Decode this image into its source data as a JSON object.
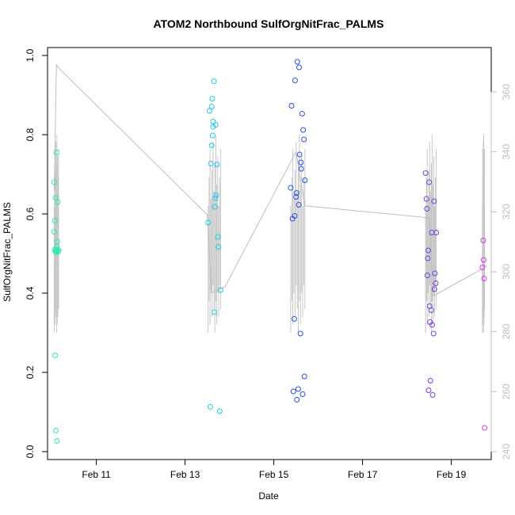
{
  "chart_data": {
    "type": "scatter",
    "title": "ATOM2 Northbound SulfOrgNitFrac_PALMS",
    "xlabel": "Date",
    "ylabel": "SulfOrgNitFrac_PALMS",
    "x_axis": {
      "unit": "date (February 2017)",
      "range": [
        9.9,
        19.9
      ],
      "ticks": [
        11,
        13,
        15,
        17,
        19
      ],
      "tick_labels": [
        "Feb 11",
        "Feb 13",
        "Feb 15",
        "Feb 17",
        "Feb 19"
      ]
    },
    "y_axis": {
      "range": [
        0,
        1.0
      ],
      "ticks": [
        0.0,
        0.2,
        0.4,
        0.6,
        0.8,
        1.0
      ],
      "tick_labels": [
        "0.0",
        "0.2",
        "0.4",
        "0.6",
        "0.8",
        "1.0"
      ]
    },
    "y2_axis": {
      "range": [
        240,
        370
      ],
      "ticks": [
        240,
        260,
        280,
        300,
        320,
        340,
        360
      ],
      "tick_labels": [
        "240",
        "260",
        "280",
        "300",
        "320",
        "340",
        "360"
      ],
      "color": "#bdbdbd"
    },
    "grid": false,
    "legend": "none",
    "series": [
      {
        "color": "#2ee8b0",
        "x": [
          10.05,
          10.05,
          10.06,
          10.07,
          10.07,
          10.08,
          10.08,
          10.09,
          10.09,
          10.1,
          10.1,
          10.11,
          10.11,
          10.12,
          10.12,
          10.13,
          10.14,
          10.15
        ],
        "y": [
          0.68,
          0.555,
          0.51,
          0.583,
          0.243,
          0.641,
          0.505,
          0.053,
          0.509,
          0.755,
          0.503,
          0.518,
          0.027,
          0.53,
          0.51,
          0.63,
          0.505,
          0.508
        ]
      },
      {
        "color": "#20c8f0",
        "x": [
          13.52,
          13.55,
          13.57,
          13.58,
          13.6,
          13.6,
          13.61,
          13.62,
          13.63,
          13.63,
          13.65,
          13.66,
          13.67,
          13.68,
          13.69,
          13.7,
          13.72,
          13.74,
          13.75,
          13.78,
          13.8
        ],
        "y": [
          0.578,
          0.86,
          0.113,
          0.727,
          0.871,
          0.773,
          0.891,
          0.798,
          0.833,
          0.82,
          0.935,
          0.352,
          0.618,
          0.64,
          0.825,
          0.647,
          0.725,
          0.542,
          0.517,
          0.102,
          0.408
        ]
      },
      {
        "color": "#2a4fe8",
        "x": [
          15.38,
          15.4,
          15.42,
          15.44,
          15.46,
          15.47,
          15.48,
          15.5,
          15.51,
          15.52,
          15.53,
          15.55,
          15.56,
          15.57,
          15.58,
          15.6,
          15.61,
          15.62,
          15.64,
          15.65,
          15.66,
          15.68,
          15.69,
          15.7
        ],
        "y": [
          0.666,
          0.873,
          0.588,
          0.152,
          0.335,
          0.595,
          0.937,
          0.643,
          0.653,
          0.131,
          0.984,
          0.158,
          0.623,
          0.97,
          0.75,
          0.298,
          0.73,
          0.714,
          0.853,
          0.145,
          0.812,
          0.788,
          0.19,
          0.685
        ]
      },
      {
        "color": "#7a3ee8",
        "x": [
          18.42,
          18.44,
          18.45,
          18.46,
          18.47,
          18.48,
          18.49,
          18.5,
          18.51,
          18.52,
          18.53,
          18.55,
          18.56,
          18.57,
          18.58,
          18.6,
          18.61,
          18.62,
          18.63,
          18.65,
          18.66
        ],
        "y": [
          0.703,
          0.638,
          0.613,
          0.445,
          0.488,
          0.508,
          0.155,
          0.68,
          0.367,
          0.327,
          0.179,
          0.357,
          0.553,
          0.32,
          0.143,
          0.298,
          0.632,
          0.41,
          0.45,
          0.425,
          0.553
        ]
      },
      {
        "color": "#d838e8",
        "x": [
          19.7,
          19.72,
          19.73,
          19.74,
          19.75
        ],
        "y": [
          0.465,
          0.533,
          0.484,
          0.437,
          0.06
        ]
      }
    ],
    "secondary_line": {
      "color": "#bdbdbd",
      "description_values_y2": "altitude-like trace on right axis",
      "x": [
        10.05,
        10.1,
        10.15,
        13.5,
        13.6,
        13.9,
        15.5,
        15.7,
        18.5,
        18.6,
        19.7,
        19.8
      ],
      "y2": [
        327,
        369,
        368,
        319,
        293,
        295,
        340,
        322,
        318,
        292,
        301,
        302
      ]
    }
  }
}
